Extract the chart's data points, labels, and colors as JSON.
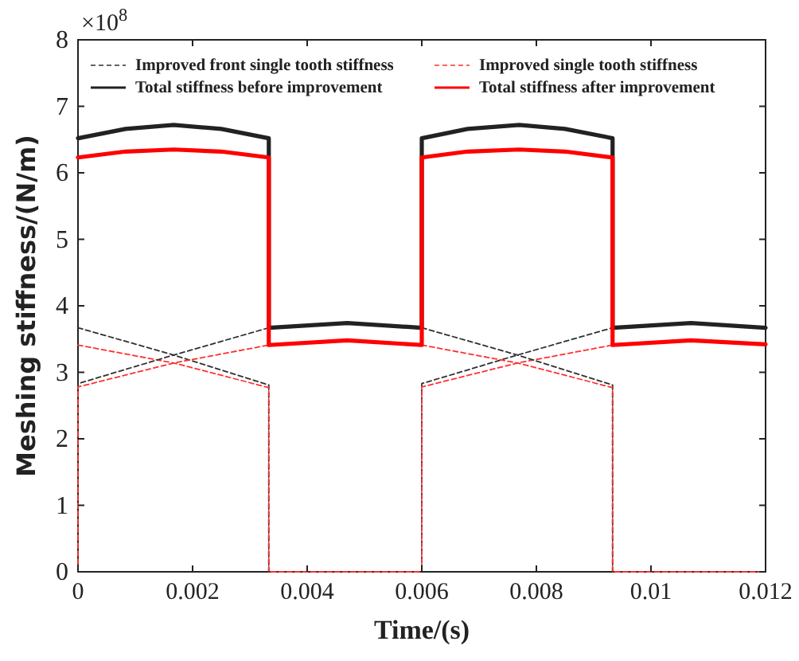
{
  "chart_data": {
    "type": "line",
    "xlabel": "Time/(s)",
    "ylabel": "Meshing stiffness/(N/m)",
    "annotations": [
      "×10$^{8}$"
    ],
    "xlim": [
      0,
      0.012
    ],
    "ylim": [
      0,
      8
    ],
    "xticks": [
      0,
      0.002,
      0.004,
      0.006,
      0.008,
      0.01,
      0.012
    ],
    "yticks": [
      0,
      1,
      2,
      3,
      4,
      5,
      6,
      7,
      8
    ],
    "grid": false,
    "legend": "top",
    "series": [
      {
        "name": "Improved front single tooth stiffness",
        "color": "#303030",
        "line_style": "dashed",
        "x": [
          0,
          0.00167,
          0.00333,
          0.00333,
          0.006,
          0.006,
          0.00767,
          0.00933
        ],
        "values": [
          3.67,
          3.26,
          2.81,
          0,
          0,
          2.83,
          3.26,
          3.67
        ]
      },
      {
        "name": "Improved single tooth stiffness",
        "color": "#ff3030",
        "line_style": "dashed",
        "x": [
          0,
          0.00167,
          0.00333,
          0.00333,
          0.006,
          0.006,
          0.00767,
          0.00933
        ],
        "values": [
          3.41,
          3.14,
          2.77,
          0,
          0,
          2.78,
          3.14,
          3.41
        ]
      },
      {
        "color": "#303030",
        "line_style": "dashed",
        "x": [
          0,
          0,
          0.00167,
          0.00333
        ],
        "values": [
          0,
          2.83,
          3.26,
          3.67
        ]
      },
      {
        "color": "#303030",
        "line_style": "dashed",
        "x": [
          0.006,
          0.00767,
          0.00933,
          0.00933,
          0.012
        ],
        "values": [
          3.67,
          3.26,
          2.81,
          0,
          0
        ]
      },
      {
        "color": "#ff3030",
        "line_style": "dashed",
        "x": [
          0,
          0,
          0.00167,
          0.00333
        ],
        "values": [
          0,
          2.78,
          3.14,
          3.41
        ]
      },
      {
        "color": "#ff3030",
        "line_style": "dashed",
        "x": [
          0.006,
          0.00767,
          0.00933,
          0.00933,
          0.012
        ],
        "values": [
          3.41,
          3.14,
          2.77,
          0,
          0
        ]
      },
      {
        "name": "Total stiffness before improvement",
        "color": "#222222",
        "line_style": "solid",
        "x": [
          0,
          0.00083,
          0.00167,
          0.0025,
          0.00333,
          0.00333,
          0.0047,
          0.006,
          0.006,
          0.0068,
          0.0077,
          0.0085,
          0.00933,
          0.00933,
          0.0107,
          0.012
        ],
        "values": [
          6.52,
          6.66,
          6.72,
          6.66,
          6.52,
          3.67,
          3.74,
          3.67,
          6.52,
          6.66,
          6.72,
          6.66,
          6.52,
          3.67,
          3.74,
          3.67
        ]
      },
      {
        "name": "Total stiffness after improvement",
        "color": "#ff0000",
        "line_style": "solid",
        "x": [
          0,
          0.00083,
          0.00167,
          0.0025,
          0.00333,
          0.00333,
          0.0047,
          0.006,
          0.006,
          0.0068,
          0.0077,
          0.0085,
          0.00933,
          0.00933,
          0.0107,
          0.012
        ],
        "values": [
          6.23,
          6.32,
          6.35,
          6.32,
          6.23,
          3.41,
          3.48,
          3.41,
          6.23,
          6.32,
          6.35,
          6.32,
          6.23,
          3.41,
          3.48,
          3.42
        ]
      }
    ]
  }
}
